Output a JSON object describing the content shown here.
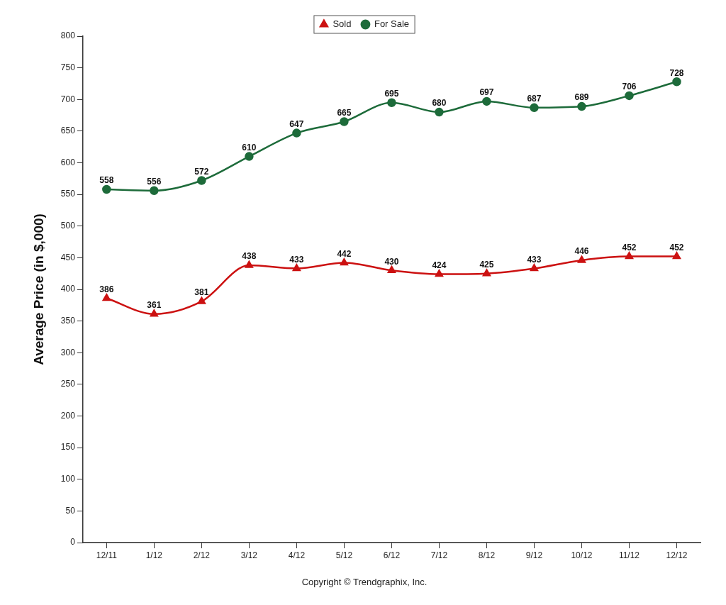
{
  "chart_data": {
    "type": "line",
    "y_label": "Average Price (in $,000)",
    "annotations": [
      "Copyright © Trendgraphix, Inc."
    ],
    "categories": [
      "12/11",
      "1/12",
      "2/12",
      "3/12",
      "4/12",
      "5/12",
      "6/12",
      "7/12",
      "8/12",
      "9/12",
      "10/12",
      "11/12",
      "12/12"
    ],
    "series": [
      {
        "name": "Sold",
        "color": "#cc1111",
        "marker": "triangle",
        "line_style": "solid",
        "values": [
          386,
          361,
          381,
          438,
          433,
          442,
          430,
          424,
          425,
          433,
          446,
          452,
          452
        ]
      },
      {
        "name": "For Sale",
        "color": "#1d6b3a",
        "marker": "circle",
        "line_style": "solid",
        "values": [
          558,
          556,
          572,
          610,
          647,
          665,
          695,
          680,
          697,
          687,
          689,
          706,
          728
        ]
      }
    ],
    "ylim": [
      0,
      800
    ],
    "yticks": [
      0,
      50,
      100,
      150,
      200,
      250,
      300,
      350,
      400,
      450,
      500,
      550,
      600,
      650,
      700,
      750,
      800
    ],
    "grid": false,
    "legend": "top",
    "data_labels": true
  }
}
